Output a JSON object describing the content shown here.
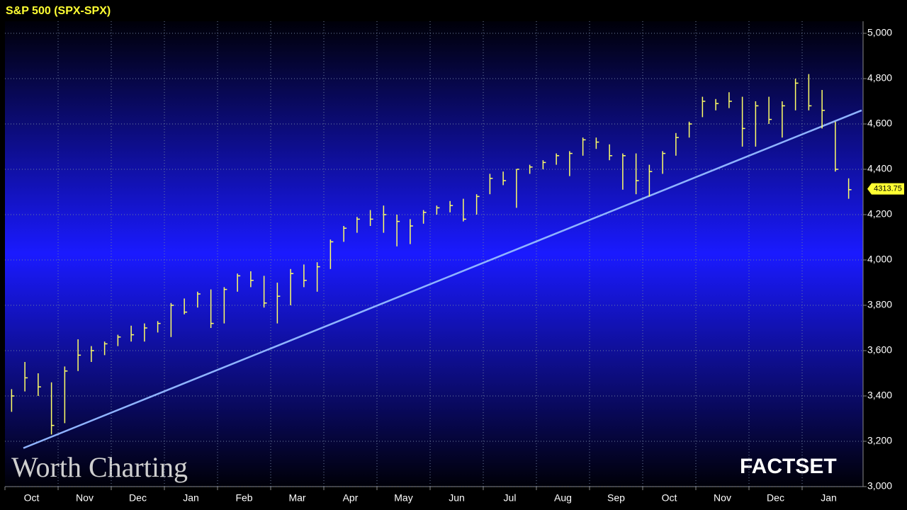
{
  "chart_data": {
    "type": "ohlc",
    "title": "S&P 500 (SPX-SPX)",
    "categories": [
      "Oct",
      "Nov",
      "Dec",
      "Jan",
      "Feb",
      "Mar",
      "Apr",
      "May",
      "Jun",
      "Jul",
      "Aug",
      "Sep",
      "Oct",
      "Nov",
      "Dec",
      "Jan"
    ],
    "high": [
      [
        3430,
        3550,
        3500,
        3460
      ],
      [
        3530,
        3650,
        3620,
        3640
      ],
      [
        3670,
        3710,
        3720,
        3730
      ],
      [
        3810,
        3830,
        3860,
        3870
      ],
      [
        3880,
        3940,
        3950,
        3930
      ],
      [
        3900,
        3960,
        3980,
        3990
      ],
      [
        4090,
        4150,
        4190,
        4220
      ],
      [
        4240,
        4200,
        4180,
        4220
      ],
      [
        4240,
        4260,
        4270,
        4290
      ],
      [
        4380,
        4390,
        4400,
        4420
      ],
      [
        4440,
        4470,
        4480,
        4540
      ],
      [
        4540,
        4510,
        4470,
        4470
      ],
      [
        4420,
        4480,
        4560,
        4610
      ],
      [
        4720,
        4710,
        4740,
        4720
      ],
      [
        4700,
        4720,
        4700,
        4800
      ],
      [
        4820,
        4750,
        4610,
        4360
      ]
    ],
    "low": [
      [
        3330,
        3420,
        3400,
        3230
      ],
      [
        3280,
        3510,
        3550,
        3580
      ],
      [
        3620,
        3640,
        3640,
        3680
      ],
      [
        3660,
        3760,
        3790,
        3700
      ],
      [
        3720,
        3860,
        3880,
        3790
      ],
      [
        3720,
        3800,
        3880,
        3860
      ],
      [
        3960,
        4080,
        4120,
        4150
      ],
      [
        4120,
        4060,
        4070,
        4160
      ],
      [
        4200,
        4210,
        4170,
        4200
      ],
      [
        4290,
        4330,
        4230,
        4380
      ],
      [
        4400,
        4420,
        4370,
        4460
      ],
      [
        4490,
        4440,
        4310,
        4290
      ],
      [
        4280,
        4380,
        4460,
        4540
      ],
      [
        4630,
        4660,
        4670,
        4500
      ],
      [
        4500,
        4600,
        4540,
        4660
      ],
      [
        4660,
        4580,
        4390,
        4270
      ]
    ],
    "close": [
      [
        3400,
        3480,
        3440,
        3270
      ],
      [
        3510,
        3580,
        3600,
        3630
      ],
      [
        3660,
        3670,
        3700,
        3720
      ],
      [
        3800,
        3770,
        3850,
        3720
      ],
      [
        3870,
        3930,
        3910,
        3810
      ],
      [
        3840,
        3940,
        3910,
        3970
      ],
      [
        4080,
        4140,
        4180,
        4180
      ],
      [
        4200,
        4170,
        4150,
        4210
      ],
      [
        4230,
        4240,
        4180,
        4280
      ],
      [
        4360,
        4350,
        4400,
        4410
      ],
      [
        4430,
        4460,
        4470,
        4530
      ],
      [
        4520,
        4460,
        4460,
        4350
      ],
      [
        4390,
        4470,
        4540,
        4600
      ],
      [
        4700,
        4690,
        4700,
        4580
      ],
      [
        4680,
        4620,
        4680,
        4780
      ],
      [
        4680,
        4660,
        4400,
        4310
      ]
    ],
    "bar_color": "#ffff66",
    "last_value": 4313.75,
    "trendline": [
      3170,
      4660
    ],
    "trendline_color": "#8fb4ff",
    "ylim": [
      3000,
      5000
    ],
    "yticks": [
      {
        "value": 3000,
        "label": "3,000"
      },
      {
        "value": 3200,
        "label": "3,200"
      },
      {
        "value": 3400,
        "label": "3,400"
      },
      {
        "value": 3600,
        "label": "3,600"
      },
      {
        "value": 3800,
        "label": "3,800"
      },
      {
        "value": 4000,
        "label": "4,000"
      },
      {
        "value": 4200,
        "label": "4,200"
      },
      {
        "value": 4400,
        "label": "4,400"
      },
      {
        "value": 4600,
        "label": "4,600"
      },
      {
        "value": 4800,
        "label": "4,800"
      },
      {
        "value": 5000,
        "label": "5,000"
      }
    ],
    "grid": true,
    "watermark": "Worth Charting",
    "source": "FACTSET"
  }
}
